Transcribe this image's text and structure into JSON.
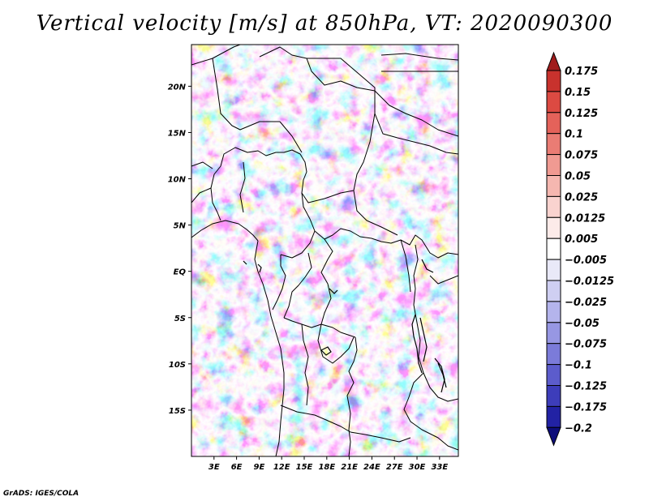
{
  "title": "Vertical velocity [m/s] at 850hPa, VT: 2020090300",
  "footer": "GrADS: IGES/COLA",
  "chart_data": {
    "type": "heatmap",
    "variable": "Vertical velocity",
    "units": "m/s",
    "level": "850hPa",
    "valid_time": "2020090300",
    "lat_range": [
      -20,
      24.5
    ],
    "lon_range": [
      0,
      35.5
    ],
    "lat_ticks": [
      "20N",
      "15N",
      "10N",
      "5N",
      "EQ",
      "5S",
      "10S",
      "15S"
    ],
    "lon_ticks": [
      "3E",
      "6E",
      "9E",
      "12E",
      "15E",
      "18E",
      "21E",
      "24E",
      "27E",
      "30E",
      "33E"
    ],
    "colorbar": {
      "labels": [
        "0.175",
        "0.15",
        "0.125",
        "0.1",
        "0.075",
        "0.05",
        "0.025",
        "0.0125",
        "0.005",
        "−0.005",
        "−0.0125",
        "−0.025",
        "−0.05",
        "−0.075",
        "−0.1",
        "−0.125",
        "−0.175",
        "−0.2"
      ],
      "colors": [
        "#a01c1c",
        "#c8322d",
        "#dc4a42",
        "#e4625a",
        "#ea7c74",
        "#f09a92",
        "#f5b7b0",
        "#f9d3cf",
        "#fcebe9",
        "#ffffff",
        "#e9e9f8",
        "#cfcff2",
        "#b4b4ec",
        "#9797e3",
        "#7b7bd9",
        "#5c5ccc",
        "#3d3dba",
        "#2222a4",
        "#0d0d7a"
      ]
    }
  }
}
